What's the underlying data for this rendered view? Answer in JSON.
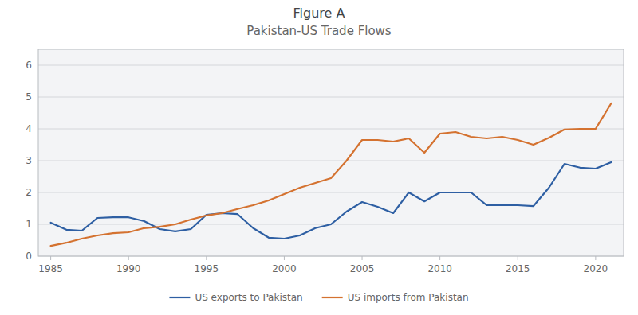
{
  "chart_data": {
    "type": "line",
    "title": "Figure A",
    "subtitle": "Pakistan-US Trade Flows",
    "x": [
      1985,
      1986,
      1987,
      1988,
      1989,
      1990,
      1991,
      1992,
      1993,
      1994,
      1995,
      1996,
      1997,
      1998,
      1999,
      2000,
      2001,
      2002,
      2003,
      2004,
      2005,
      2006,
      2007,
      2008,
      2009,
      2010,
      2011,
      2012,
      2013,
      2014,
      2015,
      2016,
      2017,
      2018,
      2019,
      2020,
      2021
    ],
    "series": [
      {
        "name": "US exports to Pakistan",
        "color": "#2E5FA3",
        "values": [
          1.05,
          0.83,
          0.8,
          1.2,
          1.22,
          1.22,
          1.1,
          0.85,
          0.78,
          0.85,
          1.3,
          1.35,
          1.32,
          0.88,
          0.58,
          0.55,
          0.65,
          0.88,
          1.0,
          1.4,
          1.7,
          1.55,
          1.35,
          2.0,
          1.72,
          2.0,
          2.0,
          2.0,
          1.6,
          1.6,
          1.6,
          1.57,
          2.15,
          2.9,
          2.78,
          2.75,
          2.95
        ]
      },
      {
        "name": "US imports from Pakistan",
        "color": "#D47230",
        "values": [
          0.32,
          0.42,
          0.55,
          0.65,
          0.72,
          0.75,
          0.88,
          0.92,
          1.0,
          1.15,
          1.28,
          1.35,
          1.48,
          1.6,
          1.75,
          1.95,
          2.15,
          2.3,
          2.45,
          3.0,
          3.65,
          3.65,
          3.6,
          3.7,
          3.25,
          3.85,
          3.9,
          3.75,
          3.7,
          3.75,
          3.65,
          3.5,
          3.72,
          3.98,
          4.0,
          4.0,
          4.8
        ]
      }
    ],
    "xlim": [
      1984.2,
      2021.8
    ],
    "ylim": [
      0,
      6.5
    ],
    "xticks": [
      1985,
      1990,
      1995,
      2000,
      2005,
      2010,
      2015,
      2020
    ],
    "yticks": [
      0,
      1,
      2,
      3,
      4,
      5,
      6
    ],
    "grid": true,
    "legend": "bottom"
  }
}
